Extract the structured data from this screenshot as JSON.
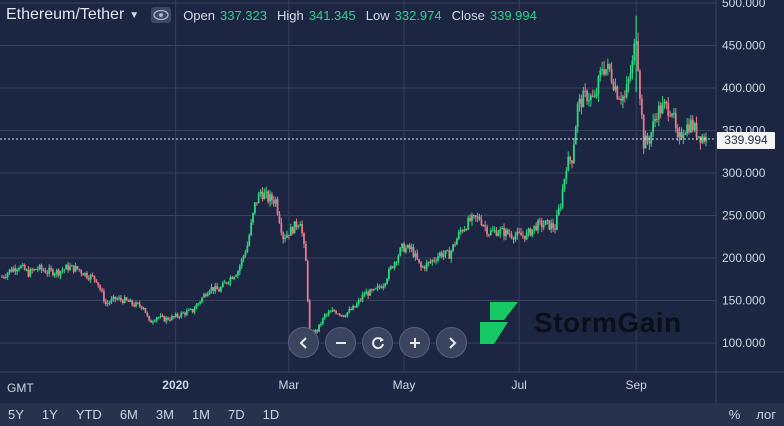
{
  "header": {
    "symbol": "Ethereum/Tether",
    "ohlc": [
      {
        "label": "Open",
        "value": "337.323"
      },
      {
        "label": "High",
        "value": "341.345"
      },
      {
        "label": "Low",
        "value": "332.974"
      },
      {
        "label": "Close",
        "value": "339.994"
      }
    ]
  },
  "timezone": "GMT",
  "last_price": "339.994",
  "brand": "StormGain",
  "ranges": [
    "5Y",
    "1Y",
    "YTD",
    "6M",
    "3M",
    "1M",
    "7D",
    "1D"
  ],
  "scale_options": [
    "%",
    "лог"
  ],
  "colors": {
    "up": "#2ed87f",
    "down": "#e57a8a",
    "bg": "#1c2541",
    "grid": "#36415b",
    "logo": "#17c964"
  },
  "chart_data": {
    "type": "candlestick",
    "ylim": [
      90,
      500
    ],
    "y_ticks": [
      "500.000",
      "450.000",
      "400.000",
      "350.000",
      "300.000",
      "250.000",
      "200.000",
      "150.000",
      "100.000"
    ],
    "x_ticks": [
      "2020",
      "Mar",
      "May",
      "Jul",
      "Sep"
    ],
    "close_series": [
      [
        "2019-10-01",
        178
      ],
      [
        "2019-10-05",
        185
      ],
      [
        "2019-10-10",
        191
      ],
      [
        "2019-10-15",
        182
      ],
      [
        "2019-10-20",
        188
      ],
      [
        "2019-10-25",
        184
      ],
      [
        "2019-10-31",
        184
      ],
      [
        "2019-11-05",
        189
      ],
      [
        "2019-11-10",
        187
      ],
      [
        "2019-11-15",
        180
      ],
      [
        "2019-11-20",
        175
      ],
      [
        "2019-11-25",
        146
      ],
      [
        "2019-11-30",
        152
      ],
      [
        "2019-12-05",
        150
      ],
      [
        "2019-12-10",
        145
      ],
      [
        "2019-12-15",
        143
      ],
      [
        "2019-12-18",
        124
      ],
      [
        "2019-12-22",
        131
      ],
      [
        "2019-12-26",
        128
      ],
      [
        "2019-12-31",
        130
      ],
      [
        "2020-01-05",
        135
      ],
      [
        "2020-01-10",
        138
      ],
      [
        "2020-01-14",
        150
      ],
      [
        "2020-01-19",
        165
      ],
      [
        "2020-01-24",
        162
      ],
      [
        "2020-01-29",
        175
      ],
      [
        "2020-02-03",
        185
      ],
      [
        "2020-02-08",
        215
      ],
      [
        "2020-02-12",
        262
      ],
      [
        "2020-02-15",
        278
      ],
      [
        "2020-02-19",
        270
      ],
      [
        "2020-02-23",
        268
      ],
      [
        "2020-02-27",
        225
      ],
      [
        "2020-03-02",
        232
      ],
      [
        "2020-03-07",
        245
      ],
      [
        "2020-03-10",
        195
      ],
      [
        "2020-03-12",
        110
      ],
      [
        "2020-03-16",
        115
      ],
      [
        "2020-03-20",
        132
      ],
      [
        "2020-03-25",
        138
      ],
      [
        "2020-03-30",
        133
      ],
      [
        "2020-04-05",
        142
      ],
      [
        "2020-04-10",
        158
      ],
      [
        "2020-04-15",
        160
      ],
      [
        "2020-04-20",
        170
      ],
      [
        "2020-04-25",
        192
      ],
      [
        "2020-04-30",
        212
      ],
      [
        "2020-05-05",
        210
      ],
      [
        "2020-05-10",
        188
      ],
      [
        "2020-05-15",
        195
      ],
      [
        "2020-05-20",
        205
      ],
      [
        "2020-05-25",
        204
      ],
      [
        "2020-05-31",
        232
      ],
      [
        "2020-06-05",
        244
      ],
      [
        "2020-06-10",
        247
      ],
      [
        "2020-06-15",
        230
      ],
      [
        "2020-06-20",
        232
      ],
      [
        "2020-06-25",
        229
      ],
      [
        "2020-06-30",
        226
      ],
      [
        "2020-07-05",
        227
      ],
      [
        "2020-07-10",
        238
      ],
      [
        "2020-07-15",
        240
      ],
      [
        "2020-07-20",
        236
      ],
      [
        "2020-07-23",
        265
      ],
      [
        "2020-07-26",
        310
      ],
      [
        "2020-07-29",
        318
      ],
      [
        "2020-08-01",
        378
      ],
      [
        "2020-08-03",
        385
      ],
      [
        "2020-08-06",
        392
      ],
      [
        "2020-08-10",
        385
      ],
      [
        "2020-08-14",
        425
      ],
      [
        "2020-08-18",
        420
      ],
      [
        "2020-08-22",
        395
      ],
      [
        "2020-08-26",
        388
      ],
      [
        "2020-08-30",
        428
      ],
      [
        "2020-09-01",
        465
      ],
      [
        "2020-09-03",
        395
      ],
      [
        "2020-09-05",
        335
      ],
      [
        "2020-09-08",
        340
      ],
      [
        "2020-09-12",
        372
      ],
      [
        "2020-09-16",
        378
      ],
      [
        "2020-09-20",
        375
      ],
      [
        "2020-09-23",
        335
      ],
      [
        "2020-09-26",
        352
      ],
      [
        "2020-09-30",
        358
      ],
      [
        "2020-10-04",
        345
      ],
      [
        "2020-10-08",
        340
      ]
    ]
  }
}
